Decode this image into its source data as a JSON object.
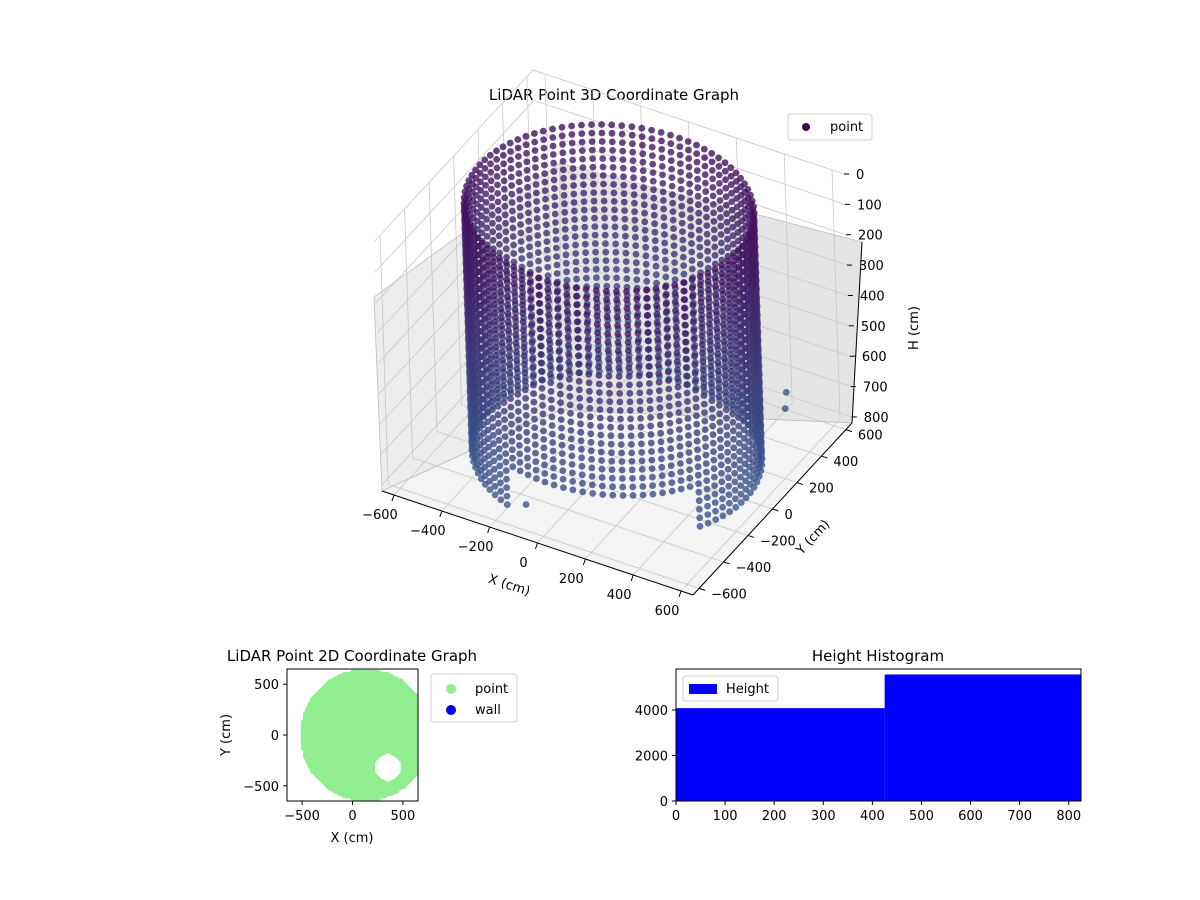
{
  "figure": {
    "background": "#ffffff"
  },
  "chart_data": [
    {
      "id": "lidar-3d",
      "type": "scatter",
      "projection": "3d",
      "title": "LiDAR Point 3D Coordinate Graph",
      "xlabel": "X (cm)",
      "ylabel": "Y (cm)",
      "zlabel": "H (cm)",
      "xlim": [
        -650,
        650
      ],
      "ylim": [
        -650,
        650
      ],
      "zlim": [
        0,
        820
      ],
      "z_inverted": true,
      "xticks": [
        -600,
        -400,
        -200,
        0,
        200,
        400,
        600
      ],
      "yticks": [
        -600,
        -400,
        -200,
        0,
        200,
        400,
        600
      ],
      "zticks": [
        0,
        100,
        200,
        300,
        400,
        500,
        600,
        700,
        800
      ],
      "legend": {
        "position": "upper-right",
        "entries": [
          {
            "label": "point",
            "color": "#440154"
          }
        ]
      },
      "colormap": "viridis",
      "point_color": "#440154",
      "shape": {
        "wall_radius": 540,
        "wall_center": [
          0,
          0
        ],
        "height_range": [
          0,
          820
        ],
        "open_sector_degrees": [
          250,
          330
        ],
        "scattered_outliers": [
          [
            350,
            700,
            820
          ],
          [
            -150,
            -450,
            820
          ],
          [
            450,
            500,
            760
          ]
        ]
      },
      "grid": true
    },
    {
      "id": "lidar-2d",
      "type": "scatter",
      "title": "LiDAR Point 2D Coordinate Graph",
      "xlabel": "X (cm)",
      "ylabel": "Y (cm)",
      "xlim": [
        -650,
        650
      ],
      "ylim": [
        -650,
        650
      ],
      "xticks": [
        -500,
        0,
        500
      ],
      "yticks": [
        -500,
        0,
        500
      ],
      "legend": {
        "position": "outside-right",
        "entries": [
          {
            "label": "point",
            "color": "#90ee90"
          },
          {
            "label": "wall",
            "color": "#0000ff"
          }
        ]
      },
      "series": [
        {
          "name": "point",
          "color": "#90ee90",
          "region": {
            "center": [
              130,
              0
            ],
            "radius": 620,
            "cutout_center": [
              350,
              -320
            ],
            "cutout_radius": 160
          }
        },
        {
          "name": "wall",
          "color": "#0000ff",
          "count": 0
        }
      ]
    },
    {
      "id": "height-histogram",
      "type": "bar",
      "title": "Height Histogram",
      "xlabel": "",
      "ylabel": "",
      "xlim": [
        0,
        825
      ],
      "ylim": [
        0,
        5800
      ],
      "xticks": [
        0,
        100,
        200,
        300,
        400,
        500,
        600,
        700,
        800
      ],
      "yticks": [
        0,
        2000,
        4000
      ],
      "legend": {
        "position": "upper-left",
        "entries": [
          {
            "label": "Height",
            "color": "#0000ff"
          }
        ]
      },
      "bins": [
        {
          "x0": 0,
          "x1": 425,
          "value": 4080
        },
        {
          "x0": 425,
          "x1": 825,
          "value": 5560
        }
      ],
      "bar_color": "#0000ff"
    }
  ]
}
